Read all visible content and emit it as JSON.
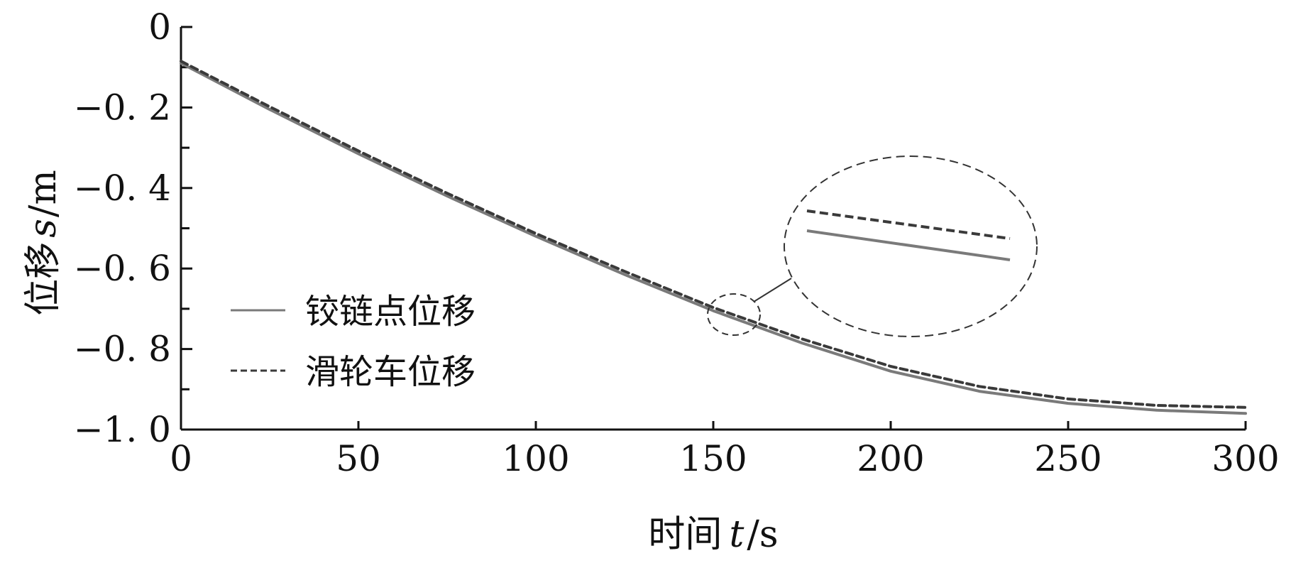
{
  "chart_data": {
    "type": "line",
    "xlabel_cn": "时间",
    "xlabel_var": "t",
    "xlabel_unit": "/s",
    "ylabel_cn": "位移",
    "ylabel_var": "s",
    "ylabel_unit": "/m",
    "xlim": [
      0,
      300
    ],
    "ylim": [
      -1.0,
      0
    ],
    "x_ticks": [
      0,
      50,
      100,
      150,
      200,
      250,
      300
    ],
    "x_tick_labels": [
      "0",
      "50",
      "100",
      "150",
      "200",
      "250",
      "300"
    ],
    "y_ticks": [
      0,
      -0.2,
      -0.4,
      -0.6,
      -0.8,
      -1.0
    ],
    "y_tick_labels": [
      "0",
      "−0. 2",
      "−0. 4",
      "−0. 6",
      "−0. 8",
      "−1. 0"
    ],
    "y_minor_ticks": [
      -0.1,
      -0.3,
      -0.5,
      -0.7,
      -0.9
    ],
    "grid": false,
    "legend_position": "center-left",
    "colors": {
      "hinge": "#7a7a7a",
      "pulley": "#3a3a3a"
    },
    "series": [
      {
        "name": "铰链点位移",
        "style": "solid",
        "x": [
          0,
          25,
          50,
          75,
          100,
          125,
          150,
          175,
          200,
          225,
          250,
          275,
          300
        ],
        "y": [
          -0.09,
          -0.205,
          -0.315,
          -0.42,
          -0.52,
          -0.615,
          -0.705,
          -0.785,
          -0.855,
          -0.905,
          -0.935,
          -0.952,
          -0.96
        ]
      },
      {
        "name": "滑轮车位移",
        "style": "dashed",
        "x": [
          0,
          25,
          50,
          75,
          100,
          125,
          150,
          175,
          200,
          225,
          250,
          275,
          300
        ],
        "y": [
          -0.085,
          -0.198,
          -0.308,
          -0.413,
          -0.513,
          -0.607,
          -0.697,
          -0.775,
          -0.843,
          -0.893,
          -0.924,
          -0.94,
          -0.945
        ]
      }
    ]
  }
}
